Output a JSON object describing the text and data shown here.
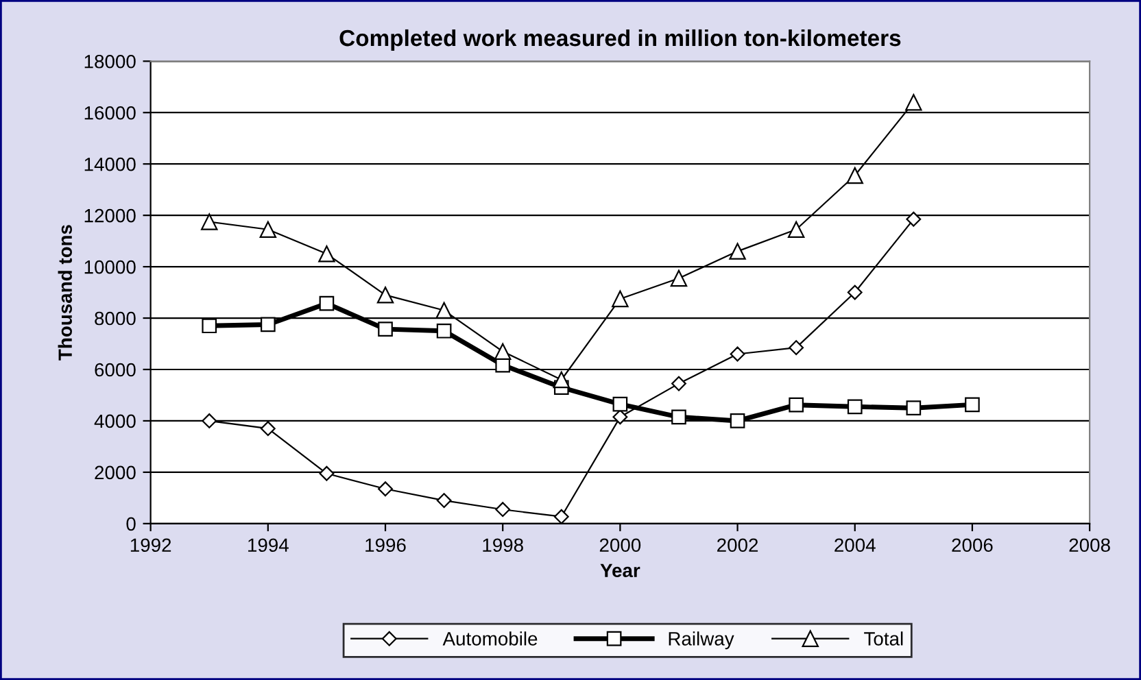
{
  "chart_data": {
    "type": "line",
    "title": "Completed work measured in million ton-kilometers",
    "xlabel": "Year",
    "ylabel": "Thousand tons",
    "x": [
      1993,
      1994,
      1995,
      1996,
      1997,
      1998,
      1999,
      2000,
      2001,
      2002,
      2003,
      2004,
      2005,
      2006
    ],
    "series": [
      {
        "name": "Automobile",
        "color": "#000000",
        "marker": "diamond",
        "values": [
          4000,
          3700,
          1950,
          1350,
          900,
          550,
          270,
          4150,
          5450,
          6600,
          6850,
          9000,
          11850,
          null
        ]
      },
      {
        "name": "Railway",
        "color": "#000000",
        "marker": "square",
        "values": [
          7700,
          7750,
          8570,
          7570,
          7500,
          6170,
          5300,
          4650,
          4150,
          4000,
          4620,
          4550,
          4500,
          4630
        ]
      },
      {
        "name": "Total",
        "color": "#000000",
        "marker": "triangle",
        "values": [
          11750,
          11450,
          10500,
          8900,
          8300,
          6700,
          5600,
          8750,
          9550,
          10600,
          11450,
          13550,
          16400,
          null
        ]
      }
    ],
    "xlim": [
      1992,
      2008
    ],
    "xticks": [
      1992,
      1994,
      1996,
      1998,
      2000,
      2002,
      2004,
      2006,
      2008
    ],
    "ylim": [
      0,
      18000
    ],
    "yticks": [
      0,
      2000,
      4000,
      6000,
      8000,
      10000,
      12000,
      14000,
      16000,
      18000
    ],
    "grid": "y",
    "legend": "bottom",
    "line_style": "solid"
  }
}
